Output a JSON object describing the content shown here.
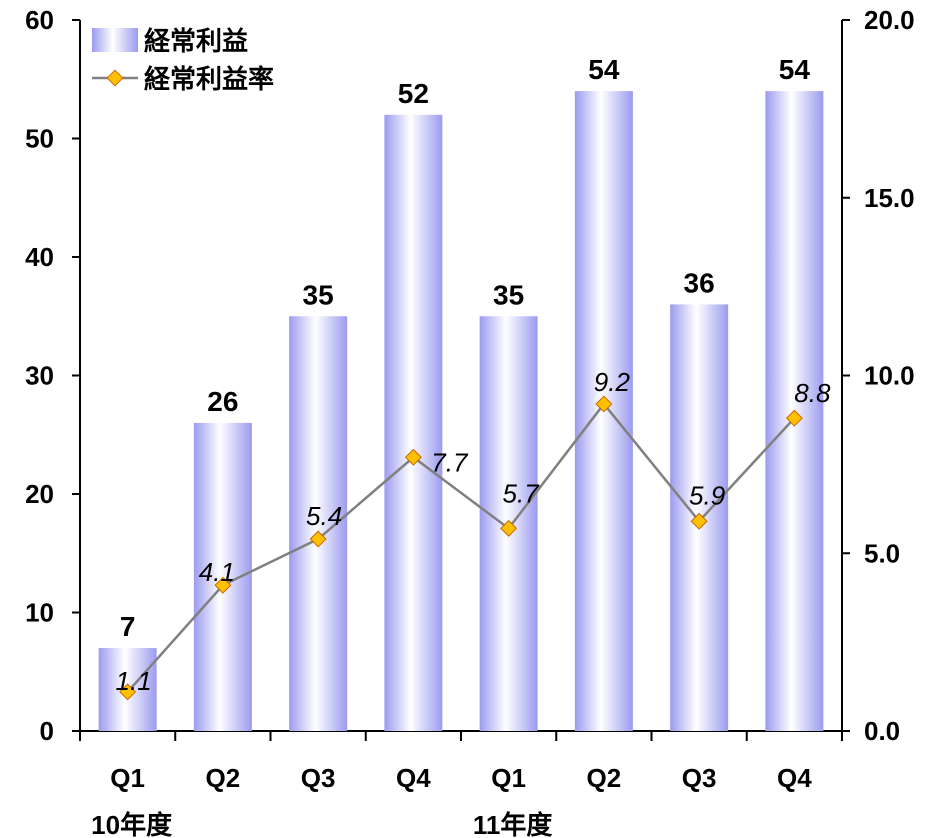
{
  "chart_data": {
    "type": "bar",
    "categories": [
      "Q1",
      "Q2",
      "Q3",
      "Q4",
      "Q1",
      "Q2",
      "Q3",
      "Q4"
    ],
    "groups": [
      {
        "label": "10年度"
      },
      {
        "label": "11年度"
      }
    ],
    "series": [
      {
        "name": "経常利益",
        "type": "bar",
        "axis": "left",
        "values": [
          7,
          26,
          35,
          52,
          35,
          54,
          36,
          54
        ],
        "color": "#9b9bef"
      },
      {
        "name": "経常利益率",
        "type": "line",
        "axis": "right",
        "values": [
          1.1,
          4.1,
          5.4,
          7.7,
          5.7,
          9.2,
          5.9,
          8.8
        ],
        "color": "#808080",
        "marker_color": "#ffc000"
      }
    ],
    "ylim_left": [
      0,
      60
    ],
    "yticks_left": [
      "0",
      "10",
      "20",
      "30",
      "40",
      "50",
      "60"
    ],
    "ylim_right": [
      0,
      20
    ],
    "yticks_right": [
      "0.0",
      "5.0",
      "10.0",
      "15.0",
      "20.0"
    ],
    "legend_position": "top-left",
    "grid": false
  }
}
